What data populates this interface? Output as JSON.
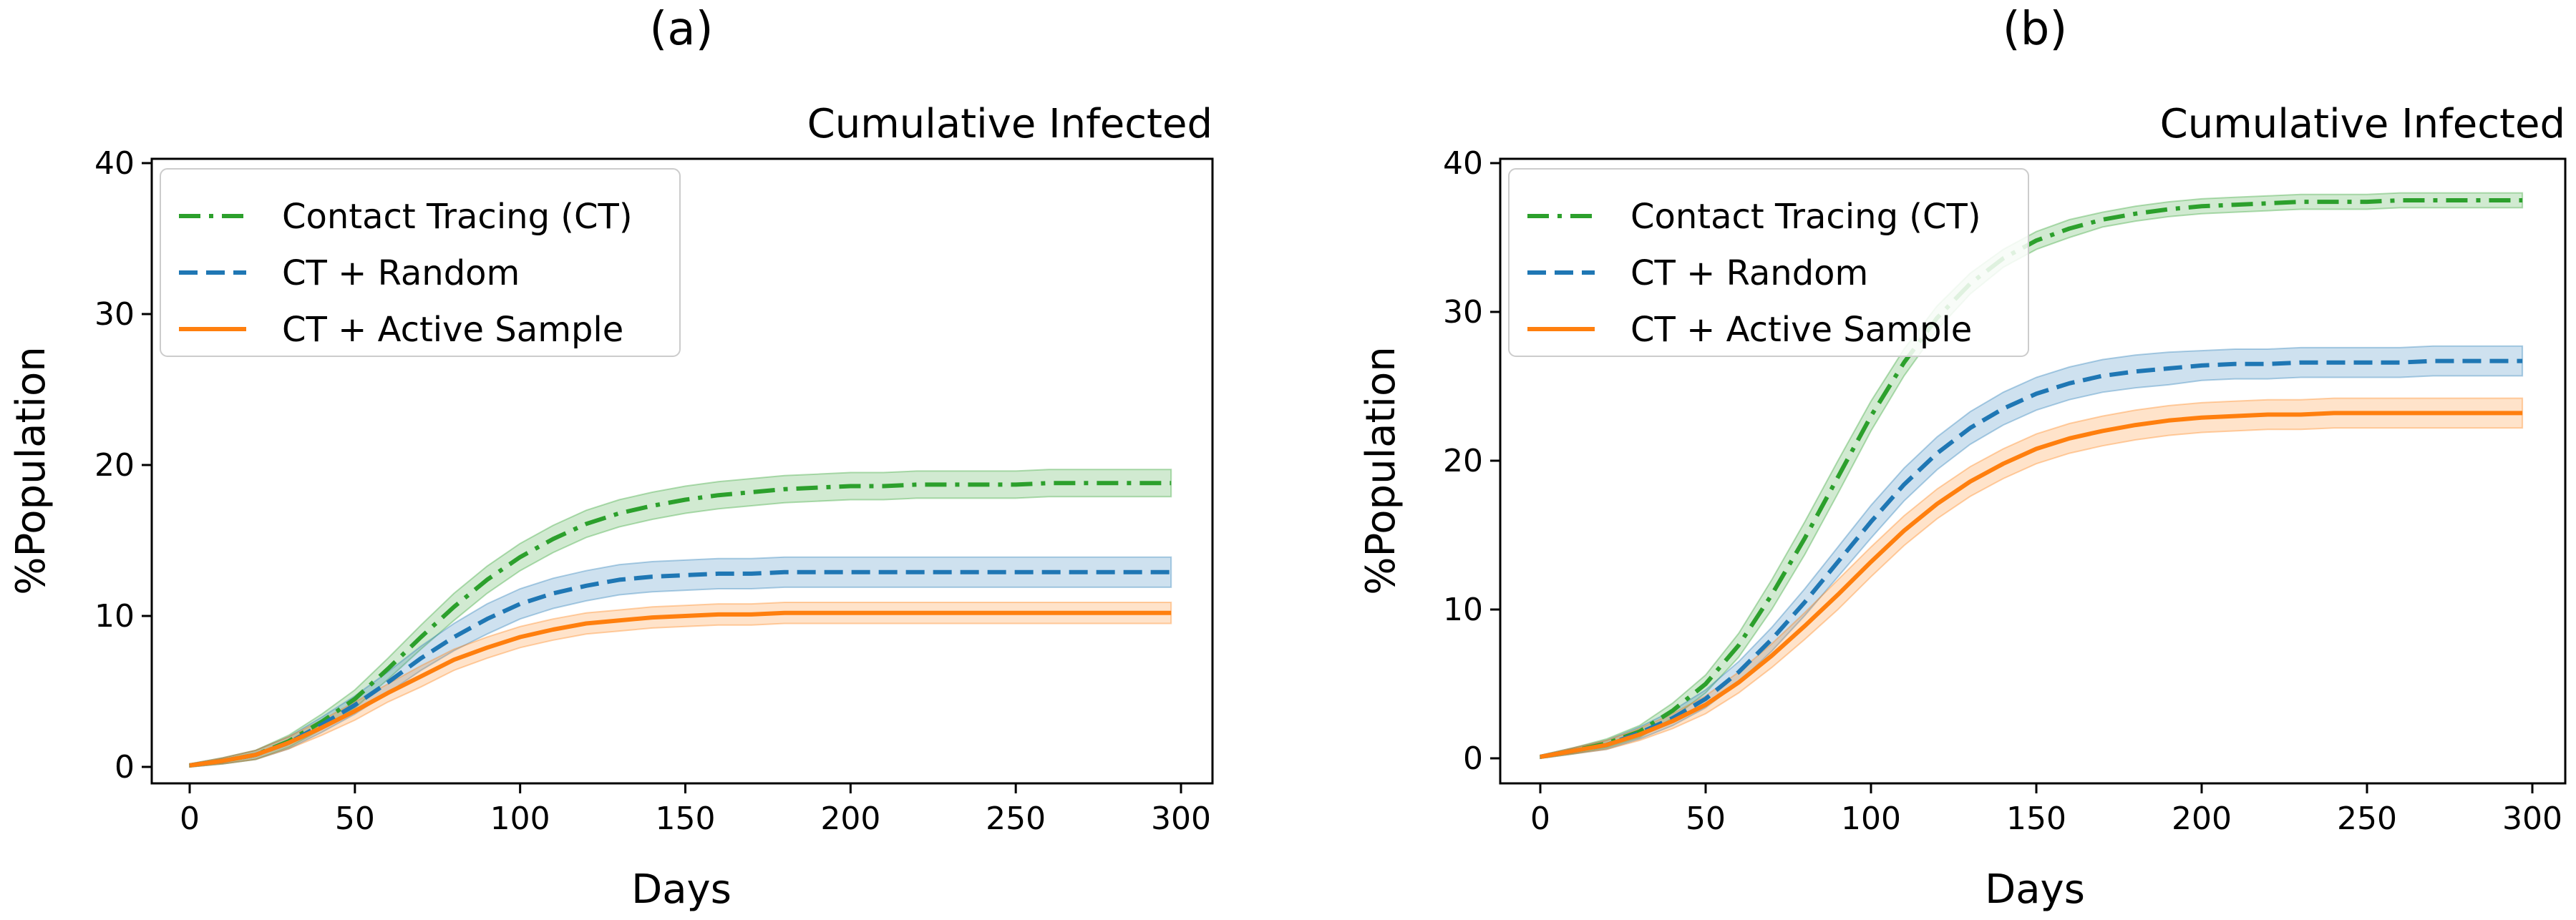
{
  "chart_data": [
    {
      "type": "line",
      "panel_label": "(a)",
      "title": "Cumulative Infected",
      "xlabel": "Days",
      "ylabel": "%Population",
      "xlim": [
        0,
        300
      ],
      "ylim": [
        0,
        40
      ],
      "xticks": [
        0,
        50,
        100,
        150,
        200,
        250,
        300
      ],
      "yticks": [
        0,
        10,
        20,
        30,
        40
      ],
      "legend_position": "top-left",
      "grid": false,
      "x": [
        0,
        10,
        20,
        30,
        40,
        50,
        60,
        70,
        80,
        90,
        100,
        110,
        120,
        130,
        140,
        150,
        160,
        170,
        180,
        190,
        200,
        210,
        220,
        230,
        240,
        250,
        260,
        270,
        280,
        290,
        297
      ],
      "series": [
        {
          "name": "Contact Tracing (CT)",
          "color": "#2ca02c",
          "style": "dashdot",
          "values": [
            0.1,
            0.4,
            0.8,
            1.7,
            3.0,
            4.5,
            6.5,
            8.6,
            10.6,
            12.4,
            13.9,
            15.1,
            16.1,
            16.8,
            17.3,
            17.7,
            18.0,
            18.2,
            18.4,
            18.5,
            18.6,
            18.6,
            18.7,
            18.7,
            18.7,
            18.7,
            18.8,
            18.8,
            18.8,
            18.8,
            18.8
          ],
          "band": [
            0.1,
            0.2,
            0.3,
            0.4,
            0.5,
            0.6,
            0.7,
            0.8,
            0.9,
            0.9,
            0.9,
            0.9,
            0.9,
            0.9,
            0.9,
            0.9,
            0.9,
            0.9,
            0.9,
            0.9,
            0.9,
            0.9,
            0.9,
            0.9,
            0.9,
            0.9,
            0.9,
            0.9,
            0.9,
            0.9,
            0.9
          ]
        },
        {
          "name": "CT + Random",
          "color": "#1f77b4",
          "style": "dashed",
          "values": [
            0.1,
            0.4,
            0.8,
            1.6,
            2.8,
            4.1,
            5.6,
            7.2,
            8.6,
            9.8,
            10.8,
            11.5,
            12.0,
            12.4,
            12.6,
            12.7,
            12.8,
            12.8,
            12.9,
            12.9,
            12.9,
            12.9,
            12.9,
            12.9,
            12.9,
            12.9,
            12.9,
            12.9,
            12.9,
            12.9,
            12.9
          ],
          "band": [
            0.1,
            0.2,
            0.3,
            0.4,
            0.5,
            0.6,
            0.7,
            0.8,
            0.9,
            1.0,
            1.0,
            1.0,
            1.0,
            1.0,
            1.0,
            1.0,
            1.0,
            1.0,
            1.0,
            1.0,
            1.0,
            1.0,
            1.0,
            1.0,
            1.0,
            1.0,
            1.0,
            1.0,
            1.0,
            1.0,
            1.0
          ]
        },
        {
          "name": "CT + Active Sample",
          "color": "#ff7f0e",
          "style": "solid",
          "values": [
            0.1,
            0.4,
            0.8,
            1.6,
            2.6,
            3.7,
            4.9,
            6.0,
            7.1,
            7.9,
            8.6,
            9.1,
            9.5,
            9.7,
            9.9,
            10.0,
            10.1,
            10.1,
            10.2,
            10.2,
            10.2,
            10.2,
            10.2,
            10.2,
            10.2,
            10.2,
            10.2,
            10.2,
            10.2,
            10.2,
            10.2
          ],
          "band": [
            0.1,
            0.2,
            0.3,
            0.4,
            0.5,
            0.6,
            0.6,
            0.7,
            0.7,
            0.7,
            0.7,
            0.7,
            0.7,
            0.7,
            0.7,
            0.7,
            0.7,
            0.7,
            0.7,
            0.7,
            0.7,
            0.7,
            0.7,
            0.7,
            0.7,
            0.7,
            0.7,
            0.7,
            0.7,
            0.7,
            0.7
          ]
        }
      ]
    },
    {
      "type": "line",
      "panel_label": "(b)",
      "title": "Cumulative Infected",
      "xlabel": "Days",
      "ylabel": "%Population",
      "xlim": [
        0,
        300
      ],
      "ylim": [
        0,
        40
      ],
      "xticks": [
        0,
        50,
        100,
        150,
        200,
        250,
        300
      ],
      "yticks": [
        0,
        10,
        20,
        30,
        40
      ],
      "legend_position": "top-left",
      "grid": false,
      "x": [
        0,
        10,
        20,
        30,
        40,
        50,
        60,
        70,
        80,
        90,
        100,
        110,
        120,
        130,
        140,
        150,
        160,
        170,
        180,
        190,
        200,
        210,
        220,
        230,
        240,
        250,
        260,
        270,
        280,
        290,
        297
      ],
      "series": [
        {
          "name": "Contact Tracing (CT)",
          "color": "#2ca02c",
          "style": "dashdot",
          "values": [
            0.1,
            0.5,
            1.0,
            1.8,
            3.2,
            5.0,
            7.6,
            11.0,
            14.8,
            18.9,
            23.0,
            26.6,
            29.6,
            31.9,
            33.6,
            34.8,
            35.6,
            36.2,
            36.6,
            36.9,
            37.1,
            37.2,
            37.3,
            37.4,
            37.4,
            37.4,
            37.5,
            37.5,
            37.5,
            37.5,
            37.5
          ],
          "band": [
            0.1,
            0.2,
            0.3,
            0.4,
            0.5,
            0.6,
            0.8,
            1.0,
            1.1,
            1.1,
            1.0,
            0.9,
            0.8,
            0.7,
            0.6,
            0.6,
            0.6,
            0.5,
            0.5,
            0.5,
            0.5,
            0.5,
            0.5,
            0.5,
            0.5,
            0.5,
            0.5,
            0.5,
            0.5,
            0.5,
            0.5
          ]
        },
        {
          "name": "CT + Random",
          "color": "#1f77b4",
          "style": "dashed",
          "values": [
            0.1,
            0.5,
            0.9,
            1.7,
            2.7,
            4.0,
            5.8,
            8.0,
            10.5,
            13.2,
            15.9,
            18.4,
            20.5,
            22.2,
            23.5,
            24.5,
            25.2,
            25.7,
            26.0,
            26.2,
            26.4,
            26.5,
            26.5,
            26.6,
            26.6,
            26.6,
            26.6,
            26.7,
            26.7,
            26.7,
            26.7
          ],
          "band": [
            0.1,
            0.2,
            0.3,
            0.4,
            0.5,
            0.6,
            0.7,
            0.8,
            0.9,
            1.0,
            1.1,
            1.1,
            1.1,
            1.1,
            1.1,
            1.1,
            1.1,
            1.1,
            1.1,
            1.1,
            1.0,
            1.0,
            1.0,
            1.0,
            1.0,
            1.0,
            1.0,
            1.0,
            1.0,
            1.0,
            1.0
          ]
        },
        {
          "name": "CT + Active Sample",
          "color": "#ff7f0e",
          "style": "solid",
          "values": [
            0.1,
            0.5,
            0.9,
            1.6,
            2.5,
            3.6,
            5.1,
            6.9,
            8.9,
            11.0,
            13.2,
            15.3,
            17.1,
            18.6,
            19.8,
            20.8,
            21.5,
            22.0,
            22.4,
            22.7,
            22.9,
            23.0,
            23.1,
            23.1,
            23.2,
            23.2,
            23.2,
            23.2,
            23.2,
            23.2,
            23.2
          ],
          "band": [
            0.1,
            0.2,
            0.3,
            0.4,
            0.5,
            0.6,
            0.7,
            0.8,
            0.9,
            1.0,
            1.0,
            1.0,
            1.0,
            1.0,
            1.0,
            1.0,
            1.0,
            1.0,
            1.0,
            1.0,
            1.0,
            1.0,
            1.0,
            1.0,
            1.0,
            1.0,
            1.0,
            1.0,
            1.0,
            1.0,
            1.0
          ]
        }
      ]
    }
  ]
}
